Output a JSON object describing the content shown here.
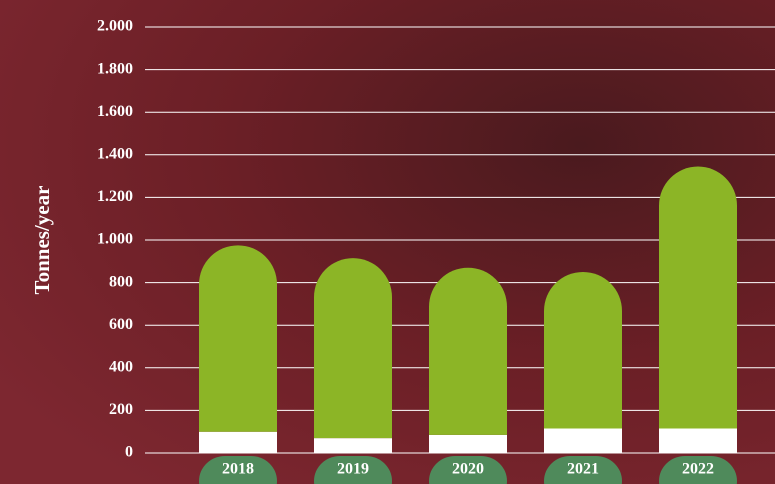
{
  "chart_data": {
    "type": "stacked-bar",
    "y_label": "Tonnes/year",
    "categories": [
      "2018",
      "2019",
      "2020",
      "2021",
      "2022"
    ],
    "series": [
      {
        "color": "#ffffff",
        "values": [
          100,
          70,
          85,
          115,
          115
        ]
      },
      {
        "color": "#8cb526",
        "values": [
          875,
          845,
          785,
          735,
          1230
        ]
      }
    ],
    "ylim": [
      0,
      2000
    ],
    "yticks": [
      0,
      200,
      400,
      600,
      800,
      {
        "value": 1000,
        "label": "1.000"
      },
      {
        "value": 1200,
        "label": "1.200"
      },
      {
        "value": 1400,
        "label": "1.400"
      },
      {
        "value": 1600,
        "label": "1.600"
      },
      {
        "value": 1800,
        "label": "1.800"
      },
      {
        "value": 2000,
        "label": "2.000"
      }
    ],
    "grid": true
  }
}
